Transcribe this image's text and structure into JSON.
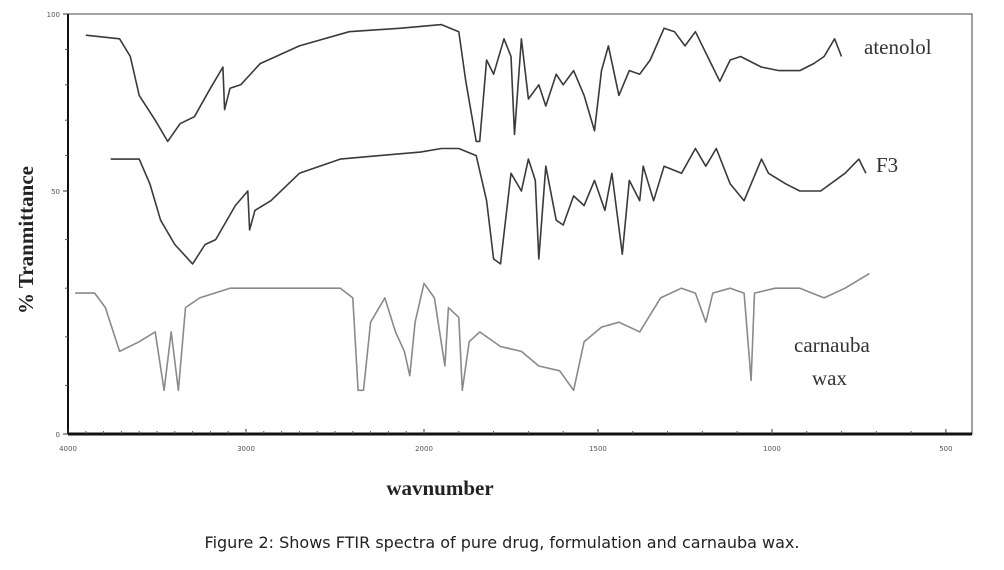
{
  "chart_data": {
    "type": "line",
    "title": "",
    "xlabel": "wavnumber",
    "ylabel": "% Tranmittance",
    "xlim": [
      4000,
      425
    ],
    "ylim": [
      0,
      100
    ],
    "x_ticks": [
      4000,
      3000,
      2000,
      1500,
      1000,
      500
    ],
    "x_tick_labels": [
      "4000",
      "3000",
      "2000",
      "1500",
      "1000",
      "500"
    ],
    "y_ticks": [
      0,
      50,
      100
    ],
    "y_tick_labels": [
      "0",
      "50",
      "100"
    ],
    "grid": false,
    "legend": "inline labels at right end of each trace",
    "series": [
      {
        "name": "atenolol",
        "color": "#3a3a3a",
        "points": [
          [
            3900,
            94
          ],
          [
            3710,
            93
          ],
          [
            3650,
            88
          ],
          [
            3600,
            77
          ],
          [
            3510,
            70
          ],
          [
            3440,
            64
          ],
          [
            3370,
            69
          ],
          [
            3290,
            71
          ],
          [
            3200,
            79
          ],
          [
            3130,
            85
          ],
          [
            3120,
            73
          ],
          [
            3090,
            79
          ],
          [
            3030,
            80
          ],
          [
            2920,
            86
          ],
          [
            2700,
            91
          ],
          [
            2420,
            95
          ],
          [
            2130,
            96
          ],
          [
            1950,
            97
          ],
          [
            1900,
            95
          ],
          [
            1880,
            81
          ],
          [
            1850,
            64
          ],
          [
            1840,
            64
          ],
          [
            1820,
            87
          ],
          [
            1800,
            83
          ],
          [
            1770,
            93
          ],
          [
            1750,
            88
          ],
          [
            1740,
            66
          ],
          [
            1720,
            93
          ],
          [
            1700,
            76
          ],
          [
            1670,
            80
          ],
          [
            1650,
            74
          ],
          [
            1620,
            83
          ],
          [
            1600,
            80
          ],
          [
            1570,
            84
          ],
          [
            1540,
            77
          ],
          [
            1510,
            67
          ],
          [
            1490,
            84
          ],
          [
            1470,
            91
          ],
          [
            1440,
            77
          ],
          [
            1410,
            84
          ],
          [
            1380,
            83
          ],
          [
            1350,
            87
          ],
          [
            1310,
            96
          ],
          [
            1280,
            95
          ],
          [
            1250,
            91
          ],
          [
            1220,
            95
          ],
          [
            1180,
            87
          ],
          [
            1150,
            81
          ],
          [
            1120,
            87
          ],
          [
            1090,
            88
          ],
          [
            1030,
            85
          ],
          [
            980,
            84
          ],
          [
            920,
            84
          ],
          [
            880,
            86
          ],
          [
            850,
            88
          ],
          [
            820,
            93
          ],
          [
            800,
            88
          ]
        ]
      },
      {
        "name": "F3",
        "color": "#3a3a3a",
        "points": [
          [
            3760,
            59
          ],
          [
            3600,
            59
          ],
          [
            3540,
            52
          ],
          [
            3480,
            44
          ],
          [
            3400,
            39
          ],
          [
            3300,
            35
          ],
          [
            3230,
            39
          ],
          [
            3170,
            40
          ],
          [
            3060,
            47
          ],
          [
            2990,
            50
          ],
          [
            2980,
            42
          ],
          [
            2950,
            46
          ],
          [
            2860,
            48
          ],
          [
            2700,
            55
          ],
          [
            2470,
            59
          ],
          [
            2250,
            60
          ],
          [
            2020,
            61
          ],
          [
            1950,
            62
          ],
          [
            1900,
            62
          ],
          [
            1850,
            60
          ],
          [
            1820,
            48
          ],
          [
            1800,
            36
          ],
          [
            1780,
            35
          ],
          [
            1750,
            55
          ],
          [
            1720,
            50
          ],
          [
            1700,
            59
          ],
          [
            1680,
            53
          ],
          [
            1670,
            36
          ],
          [
            1650,
            57
          ],
          [
            1620,
            44
          ],
          [
            1600,
            43
          ],
          [
            1570,
            49
          ],
          [
            1540,
            47
          ],
          [
            1510,
            53
          ],
          [
            1480,
            46
          ],
          [
            1460,
            55
          ],
          [
            1430,
            37
          ],
          [
            1410,
            53
          ],
          [
            1380,
            48
          ],
          [
            1370,
            57
          ],
          [
            1340,
            48
          ],
          [
            1310,
            57
          ],
          [
            1260,
            55
          ],
          [
            1220,
            62
          ],
          [
            1190,
            57
          ],
          [
            1160,
            62
          ],
          [
            1120,
            52
          ],
          [
            1080,
            48
          ],
          [
            1030,
            59
          ],
          [
            1010,
            55
          ],
          [
            960,
            52
          ],
          [
            920,
            50
          ],
          [
            860,
            50
          ],
          [
            790,
            55
          ],
          [
            750,
            59
          ],
          [
            730,
            55
          ]
        ]
      },
      {
        "name": "carnauba wax",
        "color": "#8a8a8a",
        "points": [
          [
            3960,
            29
          ],
          [
            3850,
            29
          ],
          [
            3790,
            26
          ],
          [
            3710,
            17
          ],
          [
            3600,
            19
          ],
          [
            3510,
            21
          ],
          [
            3460,
            9
          ],
          [
            3420,
            21
          ],
          [
            3380,
            9
          ],
          [
            3340,
            26
          ],
          [
            3260,
            28
          ],
          [
            3090,
            30
          ],
          [
            2920,
            30
          ],
          [
            2700,
            30
          ],
          [
            2470,
            30
          ],
          [
            2400,
            28
          ],
          [
            2370,
            9
          ],
          [
            2340,
            9
          ],
          [
            2300,
            23
          ],
          [
            2220,
            28
          ],
          [
            2160,
            21
          ],
          [
            2110,
            17
          ],
          [
            2080,
            12
          ],
          [
            2050,
            23
          ],
          [
            2000,
            31
          ],
          [
            1970,
            28
          ],
          [
            1940,
            14
          ],
          [
            1930,
            26
          ],
          [
            1900,
            24
          ],
          [
            1890,
            9
          ],
          [
            1870,
            19
          ],
          [
            1840,
            21
          ],
          [
            1780,
            18
          ],
          [
            1720,
            17
          ],
          [
            1670,
            14
          ],
          [
            1610,
            13
          ],
          [
            1570,
            9
          ],
          [
            1540,
            19
          ],
          [
            1490,
            22
          ],
          [
            1440,
            23
          ],
          [
            1380,
            21
          ],
          [
            1320,
            28
          ],
          [
            1260,
            30
          ],
          [
            1220,
            29
          ],
          [
            1190,
            23
          ],
          [
            1170,
            29
          ],
          [
            1120,
            30
          ],
          [
            1080,
            29
          ],
          [
            1060,
            11
          ],
          [
            1050,
            29
          ],
          [
            990,
            30
          ],
          [
            920,
            30
          ],
          [
            850,
            28
          ],
          [
            790,
            30
          ],
          [
            720,
            33
          ]
        ]
      }
    ],
    "series_labels": {
      "atenolol": "atenolol",
      "f3": "F3",
      "carnauba_line1": "carnauba",
      "carnauba_line2": "wax"
    }
  },
  "caption": "Figure 2: Shows FTIR spectra of pure drug, formulation and carnauba wax."
}
